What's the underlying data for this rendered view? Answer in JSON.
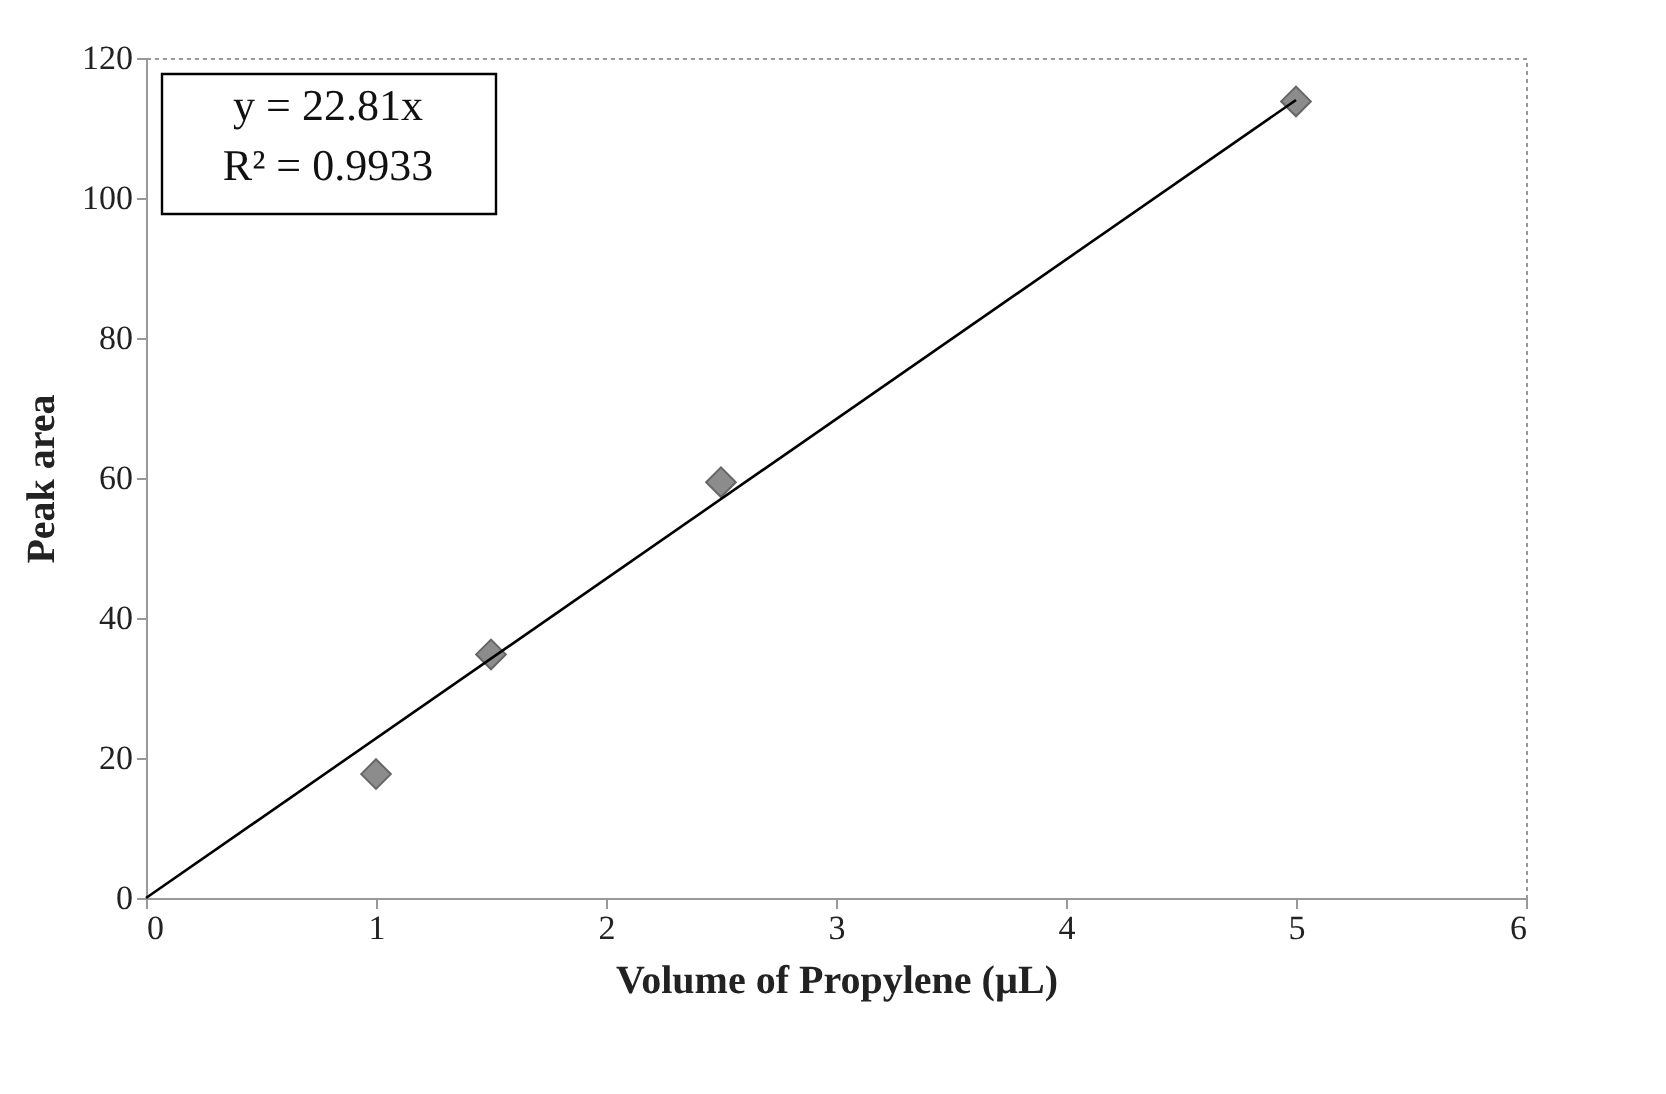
{
  "chart_data": {
    "type": "scatter",
    "xlabel": "Volume of Propylene (µL)",
    "ylabel": "Peak area",
    "xlim": [
      0,
      6
    ],
    "xticks": [
      0,
      1,
      2,
      3,
      4,
      5,
      6
    ],
    "ylim": [
      0,
      120
    ],
    "yticks": [
      0,
      20,
      40,
      60,
      80,
      100,
      120
    ],
    "grid": false,
    "marker": "diamond",
    "series": [
      {
        "color": "#8c8c8c",
        "x": [
          1,
          1.5,
          2.5,
          5
        ],
        "values": [
          17.7,
          34.8,
          59.4,
          113.8
        ]
      },
      {
        "type": "line",
        "color": "#000000",
        "line_style": "solid",
        "marker": "none",
        "x": [
          0,
          5
        ],
        "values": [
          0,
          114
        ]
      }
    ],
    "annotations": [
      "y = 22.81x\nR² = 0.9933"
    ]
  }
}
